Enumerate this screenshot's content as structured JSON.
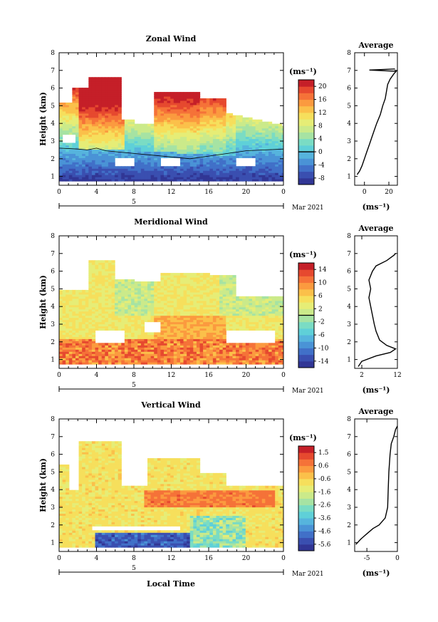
{
  "chart_data": [
    {
      "type": "heatmap",
      "title": "Zonal Wind",
      "xlabel": "",
      "ylabel": "Height (km)",
      "xlim": [
        0,
        24
      ],
      "ylim": [
        0.5,
        8
      ],
      "x_ticks": [
        "0",
        "4",
        "8",
        "12",
        "16",
        "20",
        "0"
      ],
      "y_ticks": [
        "1",
        "2",
        "3",
        "4",
        "5",
        "6",
        "7",
        "8"
      ],
      "date_label": "5",
      "month_label": "Mar 2021",
      "colorbar": {
        "label": "(ms⁻¹)",
        "ticks": [
          "20",
          "16",
          "12",
          "8",
          "4",
          "0",
          "-4",
          "-8"
        ],
        "range": [
          -10,
          22
        ],
        "zero_line": 0
      },
      "zero_contour": [
        [
          0,
          2.6
        ],
        [
          2,
          2.55
        ],
        [
          3,
          2.5
        ],
        [
          4,
          2.6
        ],
        [
          5,
          2.45
        ],
        [
          6,
          2.4
        ],
        [
          8,
          2.3
        ],
        [
          10,
          2.2
        ],
        [
          12,
          2.1
        ],
        [
          14,
          2.0
        ],
        [
          16,
          2.15
        ],
        [
          18,
          2.3
        ],
        [
          20,
          2.45
        ],
        [
          22,
          2.5
        ],
        [
          24,
          2.55
        ]
      ],
      "profile": {
        "title": "Average",
        "xlabel": "(ms⁻¹)",
        "x_ticks": [
          "0",
          "20"
        ],
        "xlim": [
          -8,
          27
        ],
        "points": [
          [
            -6,
            1.1
          ],
          [
            -4,
            1.3
          ],
          [
            -2,
            1.6
          ],
          [
            0,
            2.0
          ],
          [
            2,
            2.4
          ],
          [
            4,
            2.8
          ],
          [
            6,
            3.2
          ],
          [
            8,
            3.6
          ],
          [
            10,
            4.0
          ],
          [
            13,
            4.5
          ],
          [
            15,
            5.0
          ],
          [
            17,
            5.4
          ],
          [
            18,
            5.8
          ],
          [
            19,
            6.2
          ],
          [
            21,
            6.5
          ],
          [
            24,
            6.8
          ],
          [
            26,
            6.95
          ],
          [
            4,
            7.02
          ],
          [
            25,
            7.08
          ]
        ]
      }
    },
    {
      "type": "heatmap",
      "title": "Meridional Wind",
      "xlabel": "",
      "ylabel": "Height (km)",
      "xlim": [
        0,
        24
      ],
      "ylim": [
        0.5,
        8
      ],
      "x_ticks": [
        "0",
        "4",
        "8",
        "12",
        "16",
        "20",
        "0"
      ],
      "y_ticks": [
        "1",
        "2",
        "3",
        "4",
        "5",
        "6",
        "7",
        "8"
      ],
      "date_label": "5",
      "month_label": "Mar 2021",
      "colorbar": {
        "label": "(ms⁻¹)",
        "ticks": [
          "14",
          "10",
          "6",
          "2",
          "-2",
          "-6",
          "-10",
          "-14"
        ],
        "range": [
          -16,
          16
        ],
        "zero_line": 0
      },
      "profile": {
        "title": "Average",
        "xlabel": "(ms⁻¹)",
        "x_ticks": [
          "2",
          "12"
        ],
        "xlim": [
          0,
          12
        ],
        "points": [
          [
            1,
            0.6
          ],
          [
            2,
            0.9
          ],
          [
            6,
            1.2
          ],
          [
            10,
            1.4
          ],
          [
            11.5,
            1.6
          ],
          [
            9,
            1.8
          ],
          [
            7,
            2.1
          ],
          [
            6,
            2.6
          ],
          [
            5.5,
            3.0
          ],
          [
            5,
            3.5
          ],
          [
            4.5,
            4.0
          ],
          [
            4,
            4.5
          ],
          [
            4.5,
            5.0
          ],
          [
            4,
            5.5
          ],
          [
            5,
            6.0
          ],
          [
            6,
            6.3
          ],
          [
            9,
            6.6
          ],
          [
            11,
            6.9
          ],
          [
            11.5,
            7.0
          ]
        ]
      }
    },
    {
      "type": "heatmap",
      "title": "Vertical Wind",
      "xlabel": "Local Time",
      "ylabel": "Height (km)",
      "xlim": [
        0,
        24
      ],
      "ylim": [
        0.5,
        8
      ],
      "x_ticks": [
        "0",
        "4",
        "8",
        "12",
        "16",
        "20",
        "0"
      ],
      "y_ticks": [
        "1",
        "2",
        "3",
        "4",
        "5",
        "6",
        "7",
        "8"
      ],
      "date_label": "5",
      "month_label": "Mar 2021",
      "colorbar": {
        "label": "(ms⁻¹)",
        "ticks": [
          "1.5",
          "0.6",
          "-0.6",
          "-1.6",
          "-2.6",
          "-3.6",
          "-4.6",
          "-5.6"
        ],
        "range": [
          -6.2,
          2.0
        ]
      },
      "profile": {
        "title": "Average",
        "xlabel": "(ms⁻¹)",
        "x_ticks": [
          "-5",
          "0"
        ],
        "xlim": [
          -7,
          0
        ],
        "points": [
          [
            -6.8,
            0.9
          ],
          [
            -6,
            1.2
          ],
          [
            -5,
            1.5
          ],
          [
            -4,
            1.8
          ],
          [
            -3,
            2.0
          ],
          [
            -2,
            2.4
          ],
          [
            -1.6,
            3.0
          ],
          [
            -1.5,
            4.0
          ],
          [
            -1.4,
            5.0
          ],
          [
            -1.2,
            6.0
          ],
          [
            -1.0,
            6.6
          ],
          [
            -0.6,
            7.0
          ],
          [
            -0.3,
            7.4
          ],
          [
            0,
            7.6
          ]
        ]
      }
    }
  ]
}
